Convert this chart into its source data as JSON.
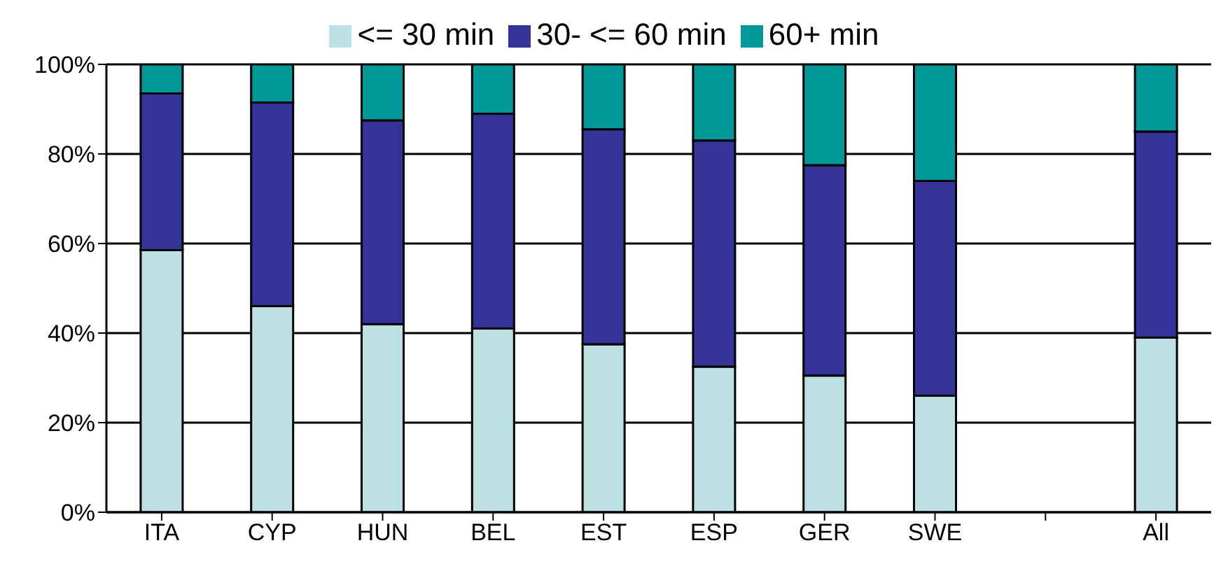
{
  "chart_data": {
    "type": "bar",
    "stacked": true,
    "categories": [
      "ITA",
      "CYP",
      "HUN",
      "BEL",
      "EST",
      "ESP",
      "GER",
      "SWE",
      null,
      "All"
    ],
    "series": [
      {
        "name": "<= 30 min",
        "color": "#bde0e3",
        "values": [
          58.5,
          46,
          42,
          41,
          37.5,
          32.5,
          30.5,
          26,
          null,
          39
        ]
      },
      {
        "name": "30- <= 60 min",
        "color": "#333399",
        "values": [
          35,
          45.5,
          45.5,
          48,
          48,
          50.5,
          47,
          48,
          null,
          46
        ]
      },
      {
        "name": "60+ min",
        "color": "#009999",
        "values": [
          6.5,
          8.5,
          12.5,
          11,
          14.5,
          17,
          22.5,
          26,
          null,
          15
        ]
      }
    ],
    "ylim": [
      0,
      100
    ],
    "yticks": [
      {
        "value": 0,
        "label": "0%"
      },
      {
        "value": 20,
        "label": "20%"
      },
      {
        "value": 40,
        "label": "40%"
      },
      {
        "value": 60,
        "label": "60%"
      },
      {
        "value": 80,
        "label": "80%"
      },
      {
        "value": 100,
        "label": "100%"
      }
    ],
    "grid": "y",
    "legend": "top"
  }
}
